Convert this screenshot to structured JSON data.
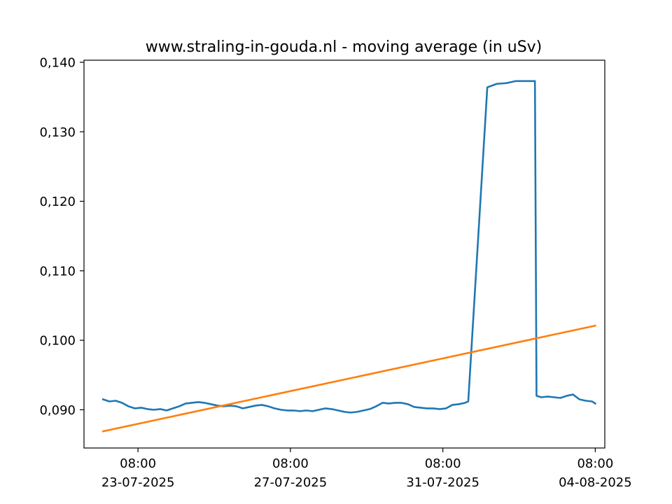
{
  "chart_data": {
    "type": "line",
    "title": "www.straling-in-gouda.nl - moving average (in uSv)",
    "xlabel": "",
    "ylabel": "",
    "x_unit": "datetime",
    "xlim": [
      "2025-07-21T22:00",
      "2025-08-04T14:00"
    ],
    "ylim": [
      0.0845,
      0.1403
    ],
    "x_ticks": [
      {
        "value": "2025-07-23T08:00",
        "time": "08:00",
        "date": "23-07-2025"
      },
      {
        "value": "2025-07-27T08:00",
        "time": "08:00",
        "date": "27-07-2025"
      },
      {
        "value": "2025-07-31T08:00",
        "time": "08:00",
        "date": "31-07-2025"
      },
      {
        "value": "2025-08-04T08:00",
        "time": "08:00",
        "date": "04-08-2025"
      }
    ],
    "y_ticks": [
      {
        "value": 0.09,
        "label": "0,090"
      },
      {
        "value": 0.1,
        "label": "0,100"
      },
      {
        "value": 0.11,
        "label": "0,110"
      },
      {
        "value": 0.12,
        "label": "0,120"
      },
      {
        "value": 0.13,
        "label": "0,130"
      },
      {
        "value": 0.14,
        "label": "0,140"
      }
    ],
    "grid": false,
    "legend": "none",
    "series": [
      {
        "color": "#1f77b4",
        "points": [
          [
            "2025-07-22T10:00",
            0.0915
          ],
          [
            "2025-07-22T14:00",
            0.0912
          ],
          [
            "2025-07-22T18:00",
            0.0913
          ],
          [
            "2025-07-22T22:00",
            0.091
          ],
          [
            "2025-07-23T02:00",
            0.0905
          ],
          [
            "2025-07-23T06:00",
            0.0902
          ],
          [
            "2025-07-23T10:00",
            0.0903
          ],
          [
            "2025-07-23T14:00",
            0.0901
          ],
          [
            "2025-07-23T18:00",
            0.09
          ],
          [
            "2025-07-23T22:00",
            0.0901
          ],
          [
            "2025-07-24T02:00",
            0.0899
          ],
          [
            "2025-07-24T06:00",
            0.0902
          ],
          [
            "2025-07-24T10:00",
            0.0905
          ],
          [
            "2025-07-24T14:00",
            0.0909
          ],
          [
            "2025-07-24T18:00",
            0.091
          ],
          [
            "2025-07-24T22:00",
            0.0911
          ],
          [
            "2025-07-25T02:00",
            0.091
          ],
          [
            "2025-07-25T06:00",
            0.0908
          ],
          [
            "2025-07-25T10:00",
            0.0906
          ],
          [
            "2025-07-25T14:00",
            0.0905
          ],
          [
            "2025-07-25T18:00",
            0.0906
          ],
          [
            "2025-07-25T22:00",
            0.0905
          ],
          [
            "2025-07-26T02:00",
            0.0902
          ],
          [
            "2025-07-26T06:00",
            0.0904
          ],
          [
            "2025-07-26T10:00",
            0.0906
          ],
          [
            "2025-07-26T14:00",
            0.0907
          ],
          [
            "2025-07-26T18:00",
            0.0905
          ],
          [
            "2025-07-26T22:00",
            0.0902
          ],
          [
            "2025-07-27T02:00",
            0.09
          ],
          [
            "2025-07-27T06:00",
            0.0899
          ],
          [
            "2025-07-27T10:00",
            0.0899
          ],
          [
            "2025-07-27T14:00",
            0.0898
          ],
          [
            "2025-07-27T18:00",
            0.0899
          ],
          [
            "2025-07-27T22:00",
            0.0898
          ],
          [
            "2025-07-28T02:00",
            0.09
          ],
          [
            "2025-07-28T06:00",
            0.0902
          ],
          [
            "2025-07-28T10:00",
            0.0901
          ],
          [
            "2025-07-28T14:00",
            0.0899
          ],
          [
            "2025-07-28T18:00",
            0.0897
          ],
          [
            "2025-07-28T22:00",
            0.0896
          ],
          [
            "2025-07-29T02:00",
            0.0897
          ],
          [
            "2025-07-29T06:00",
            0.0899
          ],
          [
            "2025-07-29T10:00",
            0.0901
          ],
          [
            "2025-07-29T14:00",
            0.0905
          ],
          [
            "2025-07-29T18:00",
            0.091
          ],
          [
            "2025-07-29T22:00",
            0.0909
          ],
          [
            "2025-07-30T02:00",
            0.091
          ],
          [
            "2025-07-30T06:00",
            0.091
          ],
          [
            "2025-07-30T10:00",
            0.0908
          ],
          [
            "2025-07-30T14:00",
            0.0904
          ],
          [
            "2025-07-30T18:00",
            0.0903
          ],
          [
            "2025-07-30T22:00",
            0.0902
          ],
          [
            "2025-07-31T02:00",
            0.0902
          ],
          [
            "2025-07-31T06:00",
            0.0901
          ],
          [
            "2025-07-31T10:00",
            0.0902
          ],
          [
            "2025-07-31T14:00",
            0.0907
          ],
          [
            "2025-07-31T18:00",
            0.0908
          ],
          [
            "2025-07-31T22:00",
            0.091
          ],
          [
            "2025-08-01T00:00",
            0.0912
          ],
          [
            "2025-08-01T12:00",
            0.1364
          ],
          [
            "2025-08-01T18:00",
            0.1369
          ],
          [
            "2025-08-02T00:00",
            0.137
          ],
          [
            "2025-08-02T06:00",
            0.1373
          ],
          [
            "2025-08-02T12:00",
            0.1373
          ],
          [
            "2025-08-02T16:00",
            0.1373
          ],
          [
            "2025-08-02T18:00",
            0.1373
          ],
          [
            "2025-08-02T19:00",
            0.092
          ],
          [
            "2025-08-02T22:00",
            0.0918
          ],
          [
            "2025-08-03T02:00",
            0.0919
          ],
          [
            "2025-08-03T06:00",
            0.0918
          ],
          [
            "2025-08-03T10:00",
            0.0917
          ],
          [
            "2025-08-03T14:00",
            0.092
          ],
          [
            "2025-08-03T18:00",
            0.0922
          ],
          [
            "2025-08-03T22:00",
            0.0915
          ],
          [
            "2025-08-04T02:00",
            0.0913
          ],
          [
            "2025-08-04T06:00",
            0.0912
          ],
          [
            "2025-08-04T08:00",
            0.0909
          ]
        ]
      },
      {
        "color": "#ff7f0e",
        "points": [
          [
            "2025-07-22T10:00",
            0.0869
          ],
          [
            "2025-08-04T08:00",
            0.1021
          ]
        ]
      }
    ]
  }
}
